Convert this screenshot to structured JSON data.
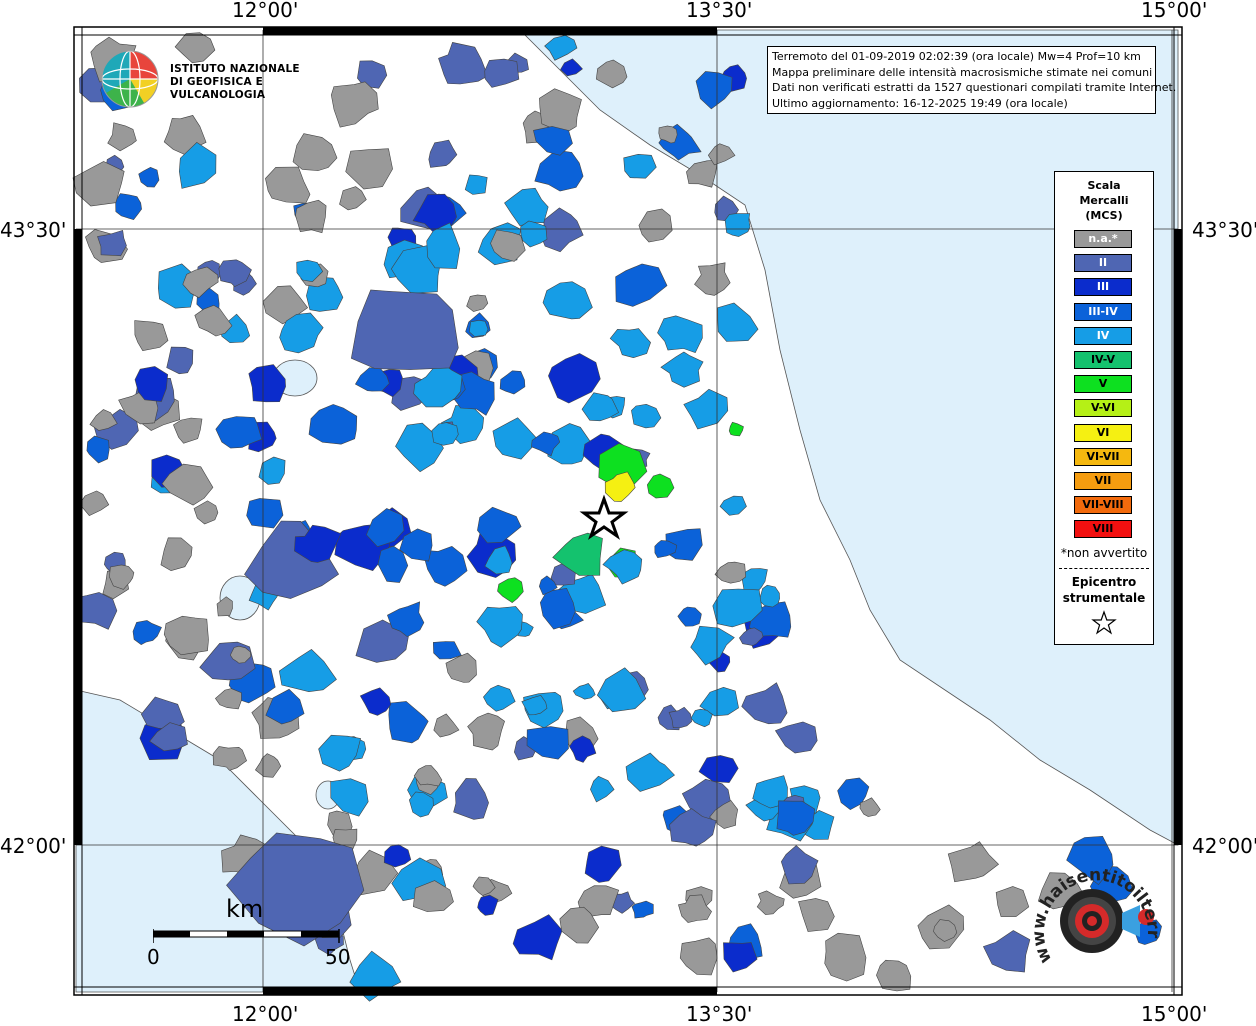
{
  "title_box": {
    "line1": "Terremoto del 01-09-2019 02:02:39 (ora locale) Mw=4 Prof=10 km",
    "line2": "Mappa preliminare delle intensità macrosismiche stimate nei comuni",
    "line3": "Dati non verificati estratti da 1527 questionari compilati tramite Internet.",
    "line4": "Ultimo aggiornamento: 16-12-2025 19:49 (ora locale)"
  },
  "axes": {
    "top": [
      "12°00'",
      "13°30'",
      "15°00'"
    ],
    "bottom": [
      "12°00'",
      "13°30'",
      "15°00'"
    ],
    "left": [
      "43°30'",
      "42°00'"
    ],
    "right": [
      "43°30'",
      "42°00'"
    ]
  },
  "logo_ingv": {
    "line1": "ISTITUTO NAZIONALE",
    "line2": "DI GEOFISICA E VULCANOLOGIA",
    "icon": "globe-icon"
  },
  "legend": {
    "title1": "Scala",
    "title2": "Mercalli",
    "title3": "(MCS)",
    "items": [
      {
        "label": "n.a.*",
        "color": "#999999",
        "text_color": "#ffffff"
      },
      {
        "label": "II",
        "color": "#4f66b3",
        "text_color": "#ffffff"
      },
      {
        "label": "III",
        "color": "#0b2ccc",
        "text_color": "#ffffff"
      },
      {
        "label": "III-IV",
        "color": "#0b62d9",
        "text_color": "#ffffff"
      },
      {
        "label": "IV",
        "color": "#169de6",
        "text_color": "#ffffff"
      },
      {
        "label": "IV-V",
        "color": "#14c26e",
        "text_color": "#000000"
      },
      {
        "label": "V",
        "color": "#0de020",
        "text_color": "#000000"
      },
      {
        "label": "V-VI",
        "color": "#b5f016",
        "text_color": "#000000"
      },
      {
        "label": "VI",
        "color": "#f5f012",
        "text_color": "#000000"
      },
      {
        "label": "VI-VII",
        "color": "#f5b80f",
        "text_color": "#000000"
      },
      {
        "label": "VII",
        "color": "#f59c0f",
        "text_color": "#000000"
      },
      {
        "label": "VII-VIII",
        "color": "#f26a0c",
        "text_color": "#000000"
      },
      {
        "label": "VIII",
        "color": "#f21010",
        "text_color": "#000000"
      }
    ],
    "note": "*non avvertito",
    "epicenter1": "Epicentro",
    "epicenter2": "strumentale",
    "epicenter_icon": "star-icon"
  },
  "scalebar": {
    "unit": "km",
    "min": "0",
    "max": "50"
  },
  "logo_hs": {
    "text": "www.haisentitoilterremoto.it",
    "icon": "target-icon"
  },
  "colors": {
    "sea": "#def0fb",
    "frame": "#000000",
    "grid": "#333333",
    "epicenter_fill": "#ffffff",
    "epicenter_stroke": "#000000"
  }
}
